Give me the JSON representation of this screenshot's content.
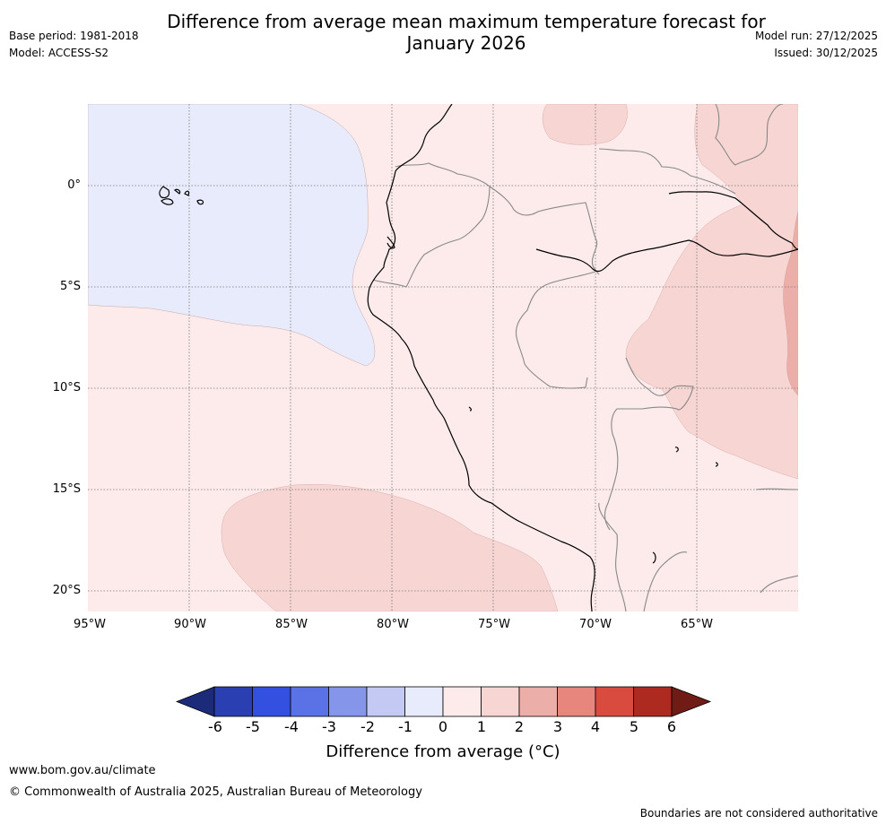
{
  "title_line1": "Difference from average mean maximum temperature forecast for",
  "title_line2": "January 2026",
  "base_period": "Base period: 1981-2018",
  "model": "Model: ACCESS-S2",
  "model_run": "Model run: 27/12/2025",
  "issued": "Issued: 30/12/2025",
  "lat_labels": [
    "0°",
    "5°S",
    "10°S",
    "15°S",
    "20°S"
  ],
  "lon_labels": [
    "95°W",
    "90°W",
    "85°W",
    "80°W",
    "75°W",
    "70°W",
    "65°W"
  ],
  "colorbar": {
    "ticks": [
      "-6",
      "-5",
      "-4",
      "-3",
      "-2",
      "-1",
      "0",
      "1",
      "2",
      "3",
      "4",
      "5",
      "6"
    ],
    "colors": [
      "#1c2a7a",
      "#2a3fb1",
      "#3350e0",
      "#5a72e6",
      "#8596ea",
      "#c3c9f3",
      "#e8ebfb",
      "#fcebea",
      "#f6d5d3",
      "#ecaea9",
      "#e6867c",
      "#d94b3e",
      "#ad2a21",
      "#6e1c15"
    ],
    "label": "Difference from average (°C)"
  },
  "legend_categories": [
    "-1 to 0",
    "0 to 1",
    "1 to 2",
    "2 to 3"
  ],
  "footer": {
    "url": "www.bom.gov.au/climate",
    "copyright": "© Commonwealth of Australia 2025, Australian Bureau of Meteorology",
    "disclaimer": "Boundaries are not considered authoritative"
  }
}
